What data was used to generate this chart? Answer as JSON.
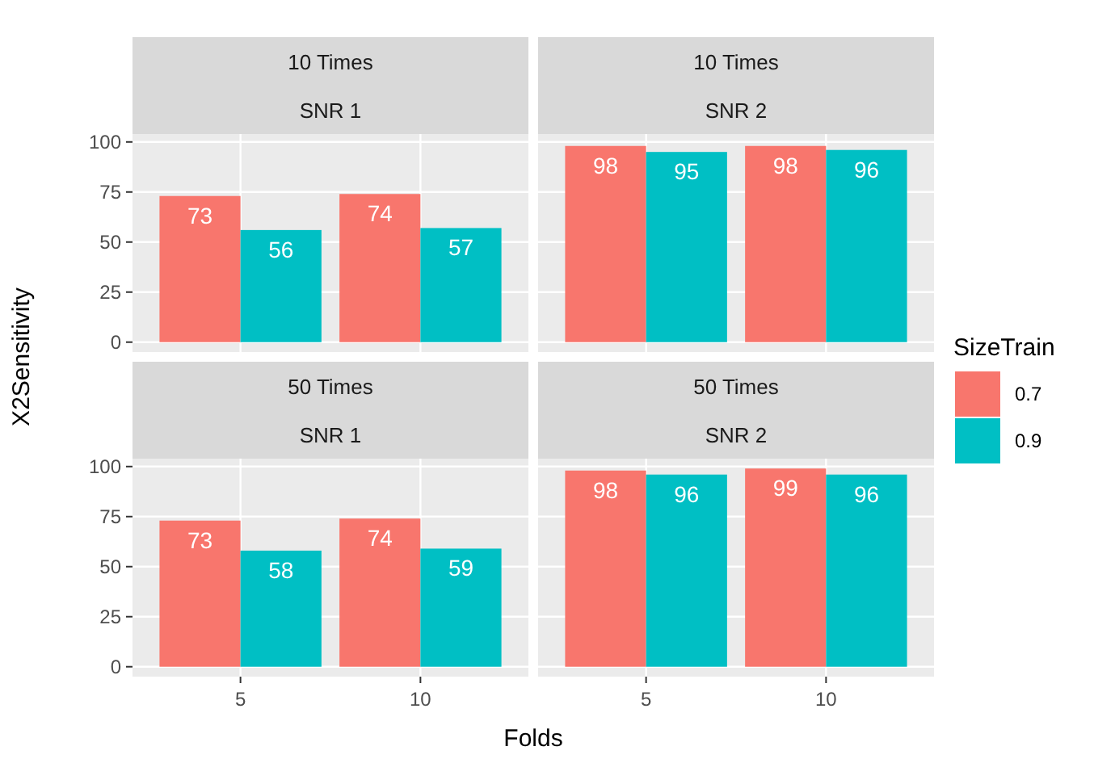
{
  "chart_data": [
    {
      "type": "bar",
      "title": "10 Times",
      "subtitle": "SNR 1",
      "ylabel": "X2Sensitivity",
      "categories": [
        "5",
        "10"
      ],
      "series": [
        {
          "color": "#f8766d",
          "values": [
            73,
            74
          ]
        },
        {
          "color": "#00bfc4",
          "values": [
            56,
            57
          ]
        }
      ],
      "ylim": [
        -4.95,
        103.95
      ],
      "yticks": [
        0,
        25,
        50,
        75,
        100
      ],
      "grid": true,
      "data_labels": true,
      "tick_labels": "y"
    },
    {
      "type": "bar",
      "title": "10 Times",
      "subtitle": "SNR 2",
      "categories": [
        "5",
        "10"
      ],
      "series": [
        {
          "name": "0.7",
          "color": "#f8766d",
          "values": [
            98,
            98
          ]
        },
        {
          "name": "0.9",
          "color": "#00bfc4",
          "values": [
            95,
            96
          ]
        }
      ],
      "ylim": [
        -4.95,
        103.95
      ],
      "yticks": [
        0,
        25,
        50,
        75,
        100
      ],
      "grid": true,
      "data_labels": true,
      "tick_labels": false,
      "legend": "right",
      "legend_title": "SizeTrain"
    },
    {
      "type": "bar",
      "title": "50 Times",
      "subtitle": "SNR 1",
      "xlabel": "Folds",
      "categories": [
        "5",
        "10"
      ],
      "series": [
        {
          "color": "#f8766d",
          "values": [
            73,
            74
          ]
        },
        {
          "color": "#00bfc4",
          "values": [
            58,
            59
          ]
        }
      ],
      "ylim": [
        -4.95,
        103.95
      ],
      "yticks": [
        0,
        25,
        50,
        75,
        100
      ],
      "grid": true,
      "data_labels": true
    },
    {
      "type": "bar",
      "title": "50 Times",
      "subtitle": "SNR 2",
      "categories": [
        "5",
        "10"
      ],
      "series": [
        {
          "color": "#f8766d",
          "values": [
            98,
            99
          ]
        },
        {
          "color": "#00bfc4",
          "values": [
            96,
            96
          ]
        }
      ],
      "ylim": [
        -4.95,
        103.95
      ],
      "yticks": [
        0,
        25,
        50,
        75,
        100
      ],
      "grid": true,
      "data_labels": true,
      "tick_labels": "x"
    }
  ]
}
